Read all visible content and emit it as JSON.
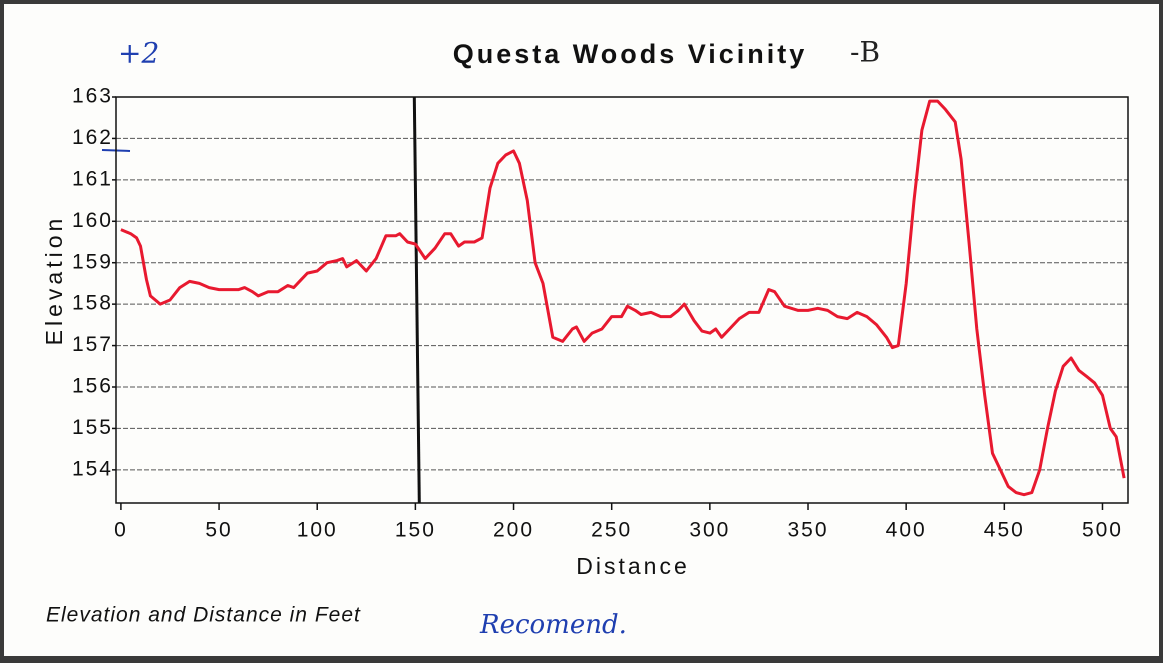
{
  "chart_data": {
    "type": "line",
    "title": "Questa Woods Vicinity",
    "title_annotation": "-B",
    "annotations": [
      "+2",
      "Recomend."
    ],
    "footer": "Elevation and Distance in Feet",
    "x_label": "Distance",
    "y_label": "Elevation",
    "grid": true,
    "marker_x": 152,
    "xlim": [
      -2.5,
      513
    ],
    "ylim": [
      153.2,
      163
    ],
    "xticks": [
      0,
      50,
      100,
      150,
      200,
      250,
      300,
      350,
      400,
      450,
      500
    ],
    "yticks": [
      154,
      155,
      156,
      157,
      158,
      159,
      160,
      161,
      162,
      163
    ],
    "x": [
      0,
      5,
      8,
      10,
      13,
      15,
      20,
      25,
      30,
      35,
      40,
      45,
      50,
      55,
      60,
      63,
      67,
      70,
      75,
      80,
      85,
      88,
      92,
      95,
      100,
      105,
      110,
      113,
      115,
      120,
      125,
      130,
      135,
      140,
      142,
      146,
      150,
      155,
      160,
      165,
      168,
      172,
      175,
      180,
      184,
      188,
      192,
      196,
      200,
      203,
      207,
      211,
      215,
      220,
      225,
      230,
      232,
      236,
      240,
      245,
      250,
      255,
      258,
      262,
      265,
      270,
      275,
      280,
      284,
      287,
      292,
      296,
      300,
      303,
      306,
      310,
      315,
      320,
      325,
      330,
      333,
      338,
      345,
      350,
      355,
      360,
      365,
      370,
      375,
      380,
      385,
      390,
      393,
      396,
      400,
      404,
      408,
      412,
      416,
      420,
      425,
      428,
      432,
      436,
      440,
      444,
      448,
      452,
      456,
      460,
      464,
      468,
      472,
      476,
      480,
      484,
      488,
      492,
      496,
      500,
      504,
      507,
      511
    ],
    "series": [
      {
        "name": "Elevation",
        "color": "#e8192f",
        "values": [
          159.8,
          159.7,
          159.6,
          159.4,
          158.6,
          158.2,
          158.0,
          158.1,
          158.4,
          158.55,
          158.5,
          158.4,
          158.35,
          158.35,
          158.35,
          158.4,
          158.3,
          158.2,
          158.3,
          158.3,
          158.45,
          158.4,
          158.6,
          158.75,
          158.8,
          159.0,
          159.05,
          159.1,
          158.9,
          159.05,
          158.8,
          159.1,
          159.65,
          159.65,
          159.7,
          159.5,
          159.45,
          159.1,
          159.35,
          159.7,
          159.7,
          159.4,
          159.5,
          159.5,
          159.6,
          160.8,
          161.4,
          161.6,
          161.7,
          161.4,
          160.5,
          159.0,
          158.5,
          157.2,
          157.1,
          157.4,
          157.45,
          157.1,
          157.3,
          157.4,
          157.7,
          157.7,
          157.95,
          157.85,
          157.75,
          157.8,
          157.7,
          157.7,
          157.85,
          158.0,
          157.6,
          157.35,
          157.3,
          157.4,
          157.2,
          157.4,
          157.65,
          157.8,
          157.8,
          158.35,
          158.3,
          157.95,
          157.85,
          157.85,
          157.9,
          157.85,
          157.7,
          157.65,
          157.8,
          157.7,
          157.5,
          157.2,
          156.95,
          157.0,
          158.5,
          160.5,
          162.2,
          162.9,
          162.9,
          162.7,
          162.4,
          161.5,
          159.5,
          157.4,
          155.8,
          154.4,
          154.0,
          153.6,
          153.45,
          153.4,
          153.45,
          154.0,
          155.0,
          155.9,
          156.5,
          156.7,
          156.4,
          156.25,
          156.1,
          155.8,
          155.0,
          154.8,
          153.8
        ]
      }
    ]
  }
}
